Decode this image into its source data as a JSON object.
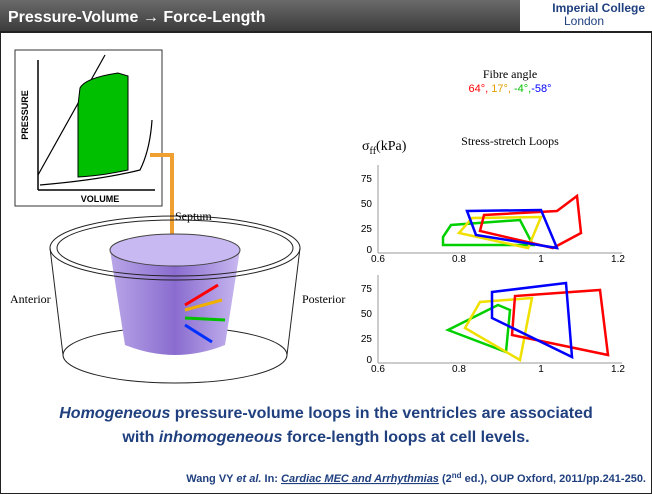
{
  "header": {
    "title": "Pressure-Volume → Force-Length",
    "logo": [
      "Imperial College",
      "London"
    ]
  },
  "pv_diagram": {
    "y_label": "PRESSURE",
    "x_label": "VOLUME"
  },
  "heart_diagram": {
    "septum": "Septum",
    "anterior": "Anterior",
    "posterior": "Posterior"
  },
  "loops": {
    "legend_title": "Fibre angle",
    "angles": [
      {
        "text": "64°,",
        "color": "#ff0000"
      },
      {
        "text": " 17°,",
        "color": "#e0a000"
      },
      {
        "text": " -4°,",
        "color": "#00c000"
      },
      {
        "text": "-58°",
        "color": "#0000ff"
      }
    ],
    "y_label": [
      "σ",
      "ff",
      "(kPa)"
    ],
    "title": "Stress-stretch Loops",
    "yticks": [
      "75",
      "50",
      "25",
      "0"
    ],
    "xticks": [
      "0.6",
      "0.8",
      "1",
      "1.2"
    ]
  },
  "statement": {
    "line1": [
      "Homogeneous",
      " pressure-volume loops in the ventricles are associated"
    ],
    "line2": [
      "with ",
      "inhomogeneous",
      " force-length loops at cell levels."
    ]
  },
  "citation": [
    "Wang VY ",
    "et al.",
    " In: ",
    "Cardiac MEC and Arrhythmias",
    " (2",
    "nd",
    " ed.), OUP Oxford, 2011/pp.241-250."
  ]
}
